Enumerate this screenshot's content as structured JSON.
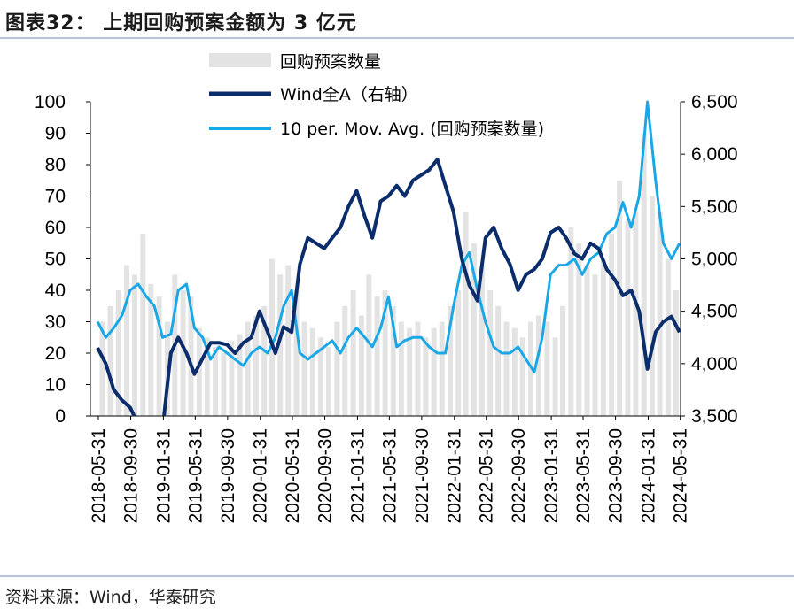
{
  "header": {
    "title": "图表32：  上期回购预案金额为 3 亿元"
  },
  "footer": {
    "source": "资料来源：Wind，华泰研究"
  },
  "colors": {
    "bars": "#e3e3e3",
    "wind": "#0b2d6b",
    "avg": "#1aa7e6",
    "rule": "#b8c4d6"
  },
  "chart_data": {
    "type": "line",
    "title": "",
    "xlabel": "",
    "ylabel": "",
    "ylim_left": [
      0,
      100
    ],
    "ylim_right": [
      3500,
      6500
    ],
    "y_left_ticks": [
      "0",
      "10",
      "20",
      "30",
      "40",
      "50",
      "60",
      "70",
      "80",
      "90",
      "100"
    ],
    "y_right_ticks": [
      "3,500",
      "4,000",
      "4,500",
      "5,000",
      "5,500",
      "6,000",
      "6,500"
    ],
    "x_tick_labels": [
      "2018-05-31",
      "2018-09-30",
      "2019-01-31",
      "2019-05-31",
      "2019-09-30",
      "2020-01-31",
      "2020-05-31",
      "2020-09-30",
      "2021-01-31",
      "2021-05-31",
      "2021-09-30",
      "2022-01-31",
      "2022-05-31",
      "2022-09-30",
      "2023-01-31",
      "2023-05-31",
      "2023-09-30",
      "2024-01-31",
      "2024-05-31"
    ],
    "grid": false,
    "legend_position": "top",
    "series": [
      {
        "name": "回购预案数量",
        "kind": "bar",
        "axis": "left",
        "x": [
          "2018-06",
          "2018-07",
          "2018-08",
          "2018-09",
          "2018-10",
          "2018-11",
          "2018-12",
          "2019-01",
          "2019-02",
          "2019-03",
          "2019-04",
          "2019-05",
          "2019-06",
          "2019-07",
          "2019-08",
          "2019-09",
          "2019-10",
          "2019-11",
          "2019-12",
          "2020-01",
          "2020-02",
          "2020-03",
          "2020-04",
          "2020-05",
          "2020-06",
          "2020-07",
          "2020-08",
          "2020-09",
          "2020-10",
          "2020-11",
          "2020-12",
          "2021-01",
          "2021-02",
          "2021-03",
          "2021-04",
          "2021-05",
          "2021-06",
          "2021-07",
          "2021-08",
          "2021-09",
          "2021-10",
          "2021-11",
          "2021-12",
          "2022-01",
          "2022-02",
          "2022-03",
          "2022-04",
          "2022-05",
          "2022-06",
          "2022-07",
          "2022-08",
          "2022-09",
          "2022-10",
          "2022-11",
          "2022-12",
          "2023-01",
          "2023-02",
          "2023-03",
          "2023-04",
          "2023-05",
          "2023-06",
          "2023-07",
          "2023-08",
          "2023-09",
          "2023-10",
          "2023-11",
          "2023-12",
          "2024-01",
          "2024-02",
          "2024-03",
          "2024-04",
          "2024-05"
        ],
        "values": [
          30,
          35,
          40,
          48,
          45,
          58,
          42,
          38,
          30,
          45,
          40,
          38,
          28,
          25,
          22,
          20,
          24,
          26,
          30,
          32,
          35,
          50,
          45,
          48,
          40,
          30,
          28,
          25,
          22,
          30,
          35,
          40,
          32,
          45,
          38,
          40,
          35,
          30,
          28,
          30,
          25,
          28,
          30,
          35,
          40,
          65,
          55,
          48,
          40,
          35,
          30,
          28,
          25,
          30,
          32,
          30,
          25,
          35,
          60,
          55,
          48,
          45,
          50,
          58,
          75,
          62,
          65,
          90,
          70,
          65,
          50,
          40
        ]
      },
      {
        "name": "Wind全A（右轴）",
        "kind": "line",
        "axis": "right",
        "x": [
          "2018-05",
          "2018-06",
          "2018-07",
          "2018-08",
          "2018-09",
          "2018-10",
          "2018-11",
          "2018-12",
          "2019-01",
          "2019-02",
          "2019-03",
          "2019-04",
          "2019-05",
          "2019-06",
          "2019-07",
          "2019-08",
          "2019-09",
          "2019-10",
          "2019-11",
          "2019-12",
          "2020-01",
          "2020-02",
          "2020-03",
          "2020-04",
          "2020-05",
          "2020-06",
          "2020-07",
          "2020-08",
          "2020-09",
          "2020-10",
          "2020-11",
          "2020-12",
          "2021-01",
          "2021-02",
          "2021-03",
          "2021-04",
          "2021-05",
          "2021-06",
          "2021-07",
          "2021-08",
          "2021-09",
          "2021-10",
          "2021-11",
          "2021-12",
          "2022-01",
          "2022-02",
          "2022-03",
          "2022-04",
          "2022-05",
          "2022-06",
          "2022-07",
          "2022-08",
          "2022-09",
          "2022-10",
          "2022-11",
          "2022-12",
          "2023-01",
          "2023-02",
          "2023-03",
          "2023-04",
          "2023-05",
          "2023-06",
          "2023-07",
          "2023-08",
          "2023-09",
          "2023-10",
          "2023-11",
          "2023-12",
          "2024-01",
          "2024-02",
          "2024-03",
          "2024-04",
          "2024-05"
        ],
        "values": [
          4150,
          4000,
          3750,
          3650,
          3580,
          3420,
          3350,
          3310,
          3380,
          4100,
          4250,
          4100,
          3900,
          4050,
          4200,
          4200,
          4180,
          4100,
          4200,
          4250,
          4500,
          4300,
          4100,
          4350,
          4300,
          4950,
          5200,
          5150,
          5100,
          5200,
          5300,
          5500,
          5650,
          5400,
          5200,
          5550,
          5600,
          5700,
          5600,
          5750,
          5800,
          5850,
          5950,
          5700,
          5450,
          5000,
          4750,
          4600,
          5200,
          5300,
          5100,
          4950,
          4700,
          4850,
          4900,
          5000,
          5250,
          5300,
          5200,
          5050,
          5000,
          5150,
          5100,
          4900,
          4800,
          4650,
          4700,
          4500,
          3950,
          4300,
          4400,
          4450,
          4300
        ]
      },
      {
        "name": "10 per. Mov. Avg. (回购预案数量)",
        "kind": "line",
        "axis": "left",
        "x": [
          "2018-05",
          "2018-06",
          "2018-07",
          "2018-08",
          "2018-09",
          "2018-10",
          "2018-11",
          "2018-12",
          "2019-01",
          "2019-02",
          "2019-03",
          "2019-04",
          "2019-05",
          "2019-06",
          "2019-07",
          "2019-08",
          "2019-09",
          "2019-10",
          "2019-11",
          "2019-12",
          "2020-01",
          "2020-02",
          "2020-03",
          "2020-04",
          "2020-05",
          "2020-06",
          "2020-07",
          "2020-08",
          "2020-09",
          "2020-10",
          "2020-11",
          "2020-12",
          "2021-01",
          "2021-02",
          "2021-03",
          "2021-04",
          "2021-05",
          "2021-06",
          "2021-07",
          "2021-08",
          "2021-09",
          "2021-10",
          "2021-11",
          "2021-12",
          "2022-01",
          "2022-02",
          "2022-03",
          "2022-04",
          "2022-05",
          "2022-06",
          "2022-07",
          "2022-08",
          "2022-09",
          "2022-10",
          "2022-11",
          "2022-12",
          "2023-01",
          "2023-02",
          "2023-03",
          "2023-04",
          "2023-05",
          "2023-06",
          "2023-07",
          "2023-08",
          "2023-09",
          "2023-10",
          "2023-11",
          "2023-12",
          "2024-01",
          "2024-02",
          "2024-03",
          "2024-04",
          "2024-05"
        ],
        "values": [
          30,
          25,
          28,
          32,
          40,
          42,
          38,
          35,
          25,
          26,
          40,
          42,
          28,
          25,
          18,
          22,
          20,
          18,
          16,
          20,
          22,
          20,
          25,
          35,
          40,
          20,
          18,
          20,
          22,
          24,
          20,
          25,
          28,
          25,
          22,
          28,
          38,
          22,
          24,
          25,
          25,
          22,
          20,
          20,
          35,
          48,
          52,
          40,
          30,
          22,
          20,
          20,
          22,
          18,
          14,
          25,
          45,
          48,
          48,
          50,
          45,
          50,
          52,
          58,
          60,
          68,
          60,
          70,
          100,
          75,
          55,
          50,
          55
        ]
      }
    ]
  }
}
